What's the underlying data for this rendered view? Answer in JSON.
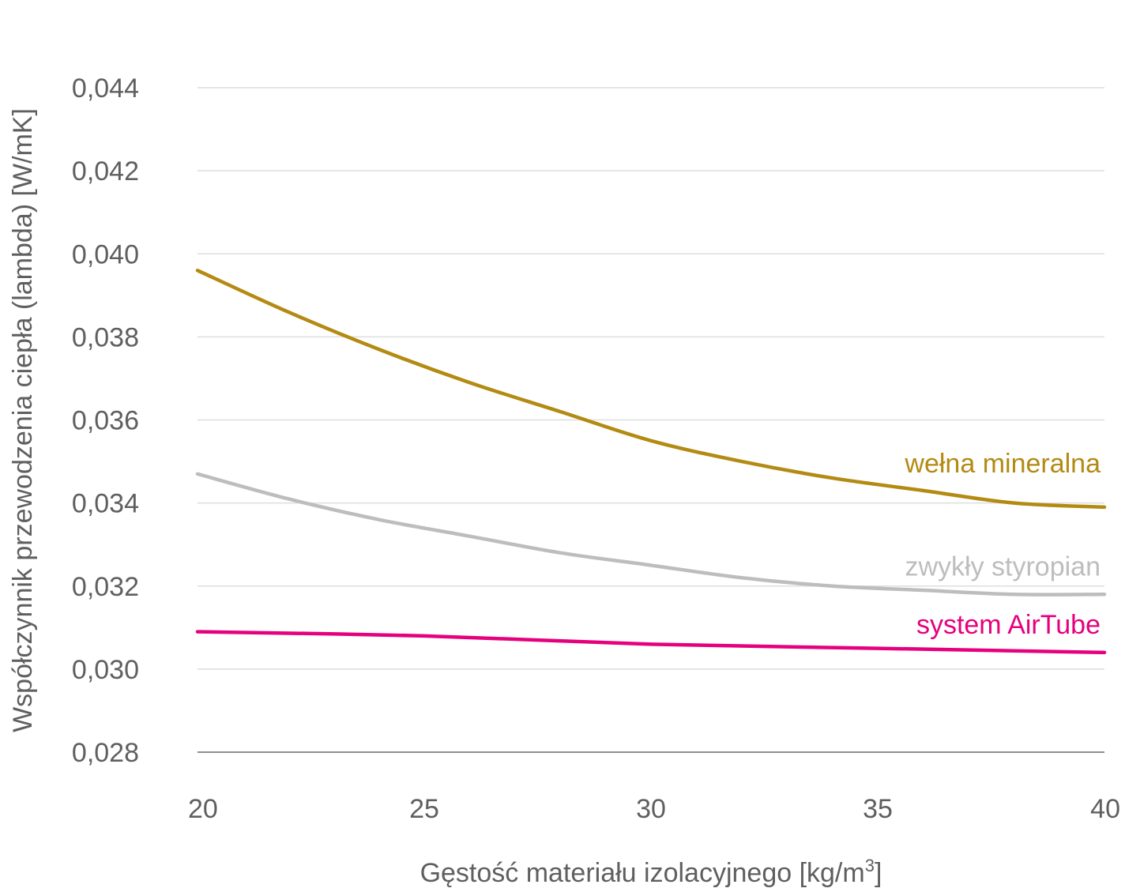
{
  "chart_data": {
    "type": "line",
    "xlabel": "Gęstość materiału izolacyjnego [kg/m",
    "xlabel_superscript": "3",
    "xlabel_suffix": "]",
    "ylabel": "Współczynnik przewodzenia ciepła (lambda) [W/mK]",
    "xlim": [
      20,
      40
    ],
    "ylim": [
      0.028,
      0.044
    ],
    "x_ticks": [
      20,
      25,
      30,
      35,
      40
    ],
    "x_tick_labels": [
      "20",
      "25",
      "30",
      "35",
      "40"
    ],
    "y_ticks": [
      0.028,
      0.03,
      0.032,
      0.034,
      0.036,
      0.038,
      0.04,
      0.042,
      0.044
    ],
    "y_tick_labels": [
      "0,028",
      "0,030",
      "0,032",
      "0,034",
      "0,036",
      "0,038",
      "0,040",
      "0,042",
      "0,044"
    ],
    "grid": "horizontal",
    "series": [
      {
        "name": "wełna mineralna",
        "color": "#b38a12",
        "x": [
          20,
          22,
          24,
          26,
          28,
          30,
          32,
          34,
          36,
          38,
          40
        ],
        "y": [
          0.0396,
          0.0386,
          0.0377,
          0.0369,
          0.0362,
          0.0355,
          0.035,
          0.0346,
          0.0343,
          0.034,
          0.0339
        ]
      },
      {
        "name": "zwykły styropian",
        "color": "#bdbdbd",
        "x": [
          20,
          22,
          24,
          26,
          28,
          30,
          32,
          34,
          36,
          38,
          40
        ],
        "y": [
          0.0347,
          0.0341,
          0.0336,
          0.0332,
          0.0328,
          0.0325,
          0.0322,
          0.032,
          0.0319,
          0.0318,
          0.0318
        ]
      },
      {
        "name": "system AirTube",
        "color": "#e6007e",
        "x": [
          20,
          25,
          30,
          35,
          40
        ],
        "y": [
          0.0309,
          0.0308,
          0.0306,
          0.0305,
          0.0304
        ]
      }
    ]
  }
}
